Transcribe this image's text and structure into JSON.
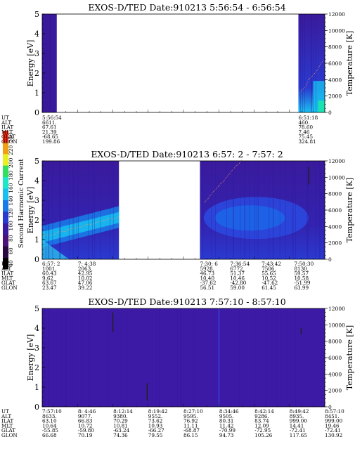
{
  "colorbar": {
    "label": "Second Harmonic Current",
    "ticks": [
      "40",
      "60",
      "80",
      "100",
      "120",
      "140",
      "160",
      "180",
      "200",
      "220",
      "250"
    ],
    "colors": [
      "#000000",
      "#2a0840",
      "#4a127a",
      "#3a1aa0",
      "#2a3ad0",
      "#1a7ae8",
      "#18c0f0",
      "#1ae8c8",
      "#30e060",
      "#e8f020",
      "#f0a010",
      "#f02810"
    ]
  },
  "chart_data": [
    {
      "type": "heatmap",
      "title": "EXOS-D/TED   Date:910213  5:56:54 - 6:56:54",
      "ylabel": "Energy [eV]",
      "y2label": "Temperature [K]",
      "ylim": [
        0,
        5
      ],
      "y2lim": [
        0,
        12000
      ],
      "yticks": [
        "0",
        "1",
        "2",
        "3",
        "4",
        "5"
      ],
      "y2ticks": [
        "0",
        "2000",
        "4000",
        "6000",
        "8000",
        "10000",
        "12000"
      ],
      "time_range_min": [
        0,
        60
      ],
      "data_segments_min": [
        [
          0,
          3.1
        ],
        [
          54.4,
          60
        ]
      ],
      "vertical_streaks": [],
      "table_row_labels": [
        "UT",
        "ALT",
        "ILAT",
        "MLT",
        "GLAT",
        "GLON"
      ],
      "table_columns": [
        {
          "at_min": 0,
          "values": [
            "5:56:54",
            "6611.",
            "67.61",
            "21.39",
            "-68.65",
            "199.86"
          ]
        },
        {
          "at_min": 54.4,
          "values": [
            "6:51:18",
            "460.",
            "78.60",
            "7.46",
            "75.45",
            "324.81"
          ]
        }
      ]
    },
    {
      "type": "heatmap",
      "title": "EXOS-D/TED   Date:910213  6:57: 2 - 7:57: 2",
      "ylabel": "Energy [eV]",
      "y2label": "Temperature [K]",
      "ylim": [
        0,
        5
      ],
      "y2lim": [
        0,
        12000
      ],
      "yticks": [
        "0",
        "1",
        "2",
        "3",
        "4",
        "5"
      ],
      "y2ticks": [
        "0",
        "2000",
        "4000",
        "6000",
        "8000",
        "10000",
        "12000"
      ],
      "time_range_min": [
        0,
        60
      ],
      "data_segments_min": [
        [
          0,
          16.3
        ],
        [
          33.5,
          60
        ]
      ],
      "vertical_streaks": [
        [
          56.6,
          3.8,
          4.7
        ]
      ],
      "table_row_labels": [
        "UT",
        "ALT",
        "ILAT",
        "MLT",
        "GLAT",
        "GLON"
      ],
      "table_columns": [
        {
          "at_min": 0,
          "values": [
            "6:57: 2",
            "1001.",
            "60.43",
            "9.62",
            "63.67",
            "23.47"
          ]
        },
        {
          "at_min": 7.6,
          "values": [
            "7: 4:38",
            "2063.",
            "42.95",
            "10.02",
            "47.06",
            "39.22"
          ]
        },
        {
          "at_min": 33.5,
          "values": [
            "7:30: 6",
            "5928.",
            "46.73",
            "10.40",
            "-37.62",
            "56.51"
          ]
        },
        {
          "at_min": 39.9,
          "values": [
            "7:36:54",
            "6772.",
            "51.37",
            "10.46",
            "-42.80",
            "59.00"
          ]
        },
        {
          "at_min": 46.6,
          "values": [
            "7:43:42",
            "7506.",
            "55.65",
            "10.52",
            "-47.62",
            "61.45"
          ]
        },
        {
          "at_min": 53.5,
          "values": [
            "7:50:30",
            "8130.",
            "59.57",
            "10.58",
            "-51.99",
            "63.99"
          ]
        }
      ]
    },
    {
      "type": "heatmap",
      "title": "EXOS-D/TED   Date:910213  7:57:10 - 8:57:10",
      "ylabel": "Energy [eV]",
      "y2label": "Temperature [K]",
      "ylim": [
        0,
        5
      ],
      "y2lim": [
        0,
        12000
      ],
      "yticks": [
        "0",
        "1",
        "2",
        "3",
        "4",
        "5"
      ],
      "y2ticks": [
        "0",
        "2000",
        "4000",
        "6000",
        "8000",
        "10000",
        "12000"
      ],
      "time_range_min": [
        0,
        60
      ],
      "data_segments_min": [
        [
          0,
          60
        ]
      ],
      "vertical_streaks": [
        [
          15.0,
          3.8,
          4.8
        ],
        [
          22.3,
          0.3,
          1.2
        ],
        [
          55.0,
          3.7,
          4.0
        ]
      ],
      "table_row_labels": [
        "UT",
        "ALT",
        "ILAT",
        "MLT",
        "GLAT",
        "GLON"
      ],
      "table_columns": [
        {
          "at_min": 0,
          "values": [
            "7:57:10",
            "8633.",
            "63.10",
            "10.64",
            "-55.85",
            "66.68"
          ]
        },
        {
          "at_min": 7.6,
          "values": [
            "8: 4:46",
            "9077.",
            "66.83",
            "10.72",
            "-59.80",
            "70.19"
          ]
        },
        {
          "at_min": 15.1,
          "values": [
            "8:12:14",
            "9380.",
            "70.29",
            "10.81",
            "-63.24",
            "74.36"
          ]
        },
        {
          "at_min": 22.5,
          "values": [
            "8:19:42",
            "9552.",
            "73.62",
            "10.93",
            "-66.27",
            "79.55"
          ]
        },
        {
          "at_min": 30.0,
          "values": [
            "8:27:10",
            "9595.",
            "76.92",
            "11.11",
            "-68.87",
            "86.15"
          ]
        },
        {
          "at_min": 37.6,
          "values": [
            "8:34:46",
            "9505.",
            "80.31",
            "11.42",
            "-70.99",
            "94.73"
          ]
        },
        {
          "at_min": 45.1,
          "values": [
            "8:42:14",
            "9286.",
            "83.74",
            "12.09",
            "-72.95",
            "105.26"
          ]
        },
        {
          "at_min": 52.5,
          "values": [
            "8:49:42",
            "8935.",
            "999.00",
            "14.41",
            "-72.41",
            "117.65"
          ]
        },
        {
          "at_min": 60.0,
          "values": [
            "8:57:10",
            "8451.",
            "999.00",
            "19.46",
            "-72.41",
            "130.92"
          ]
        }
      ]
    }
  ]
}
